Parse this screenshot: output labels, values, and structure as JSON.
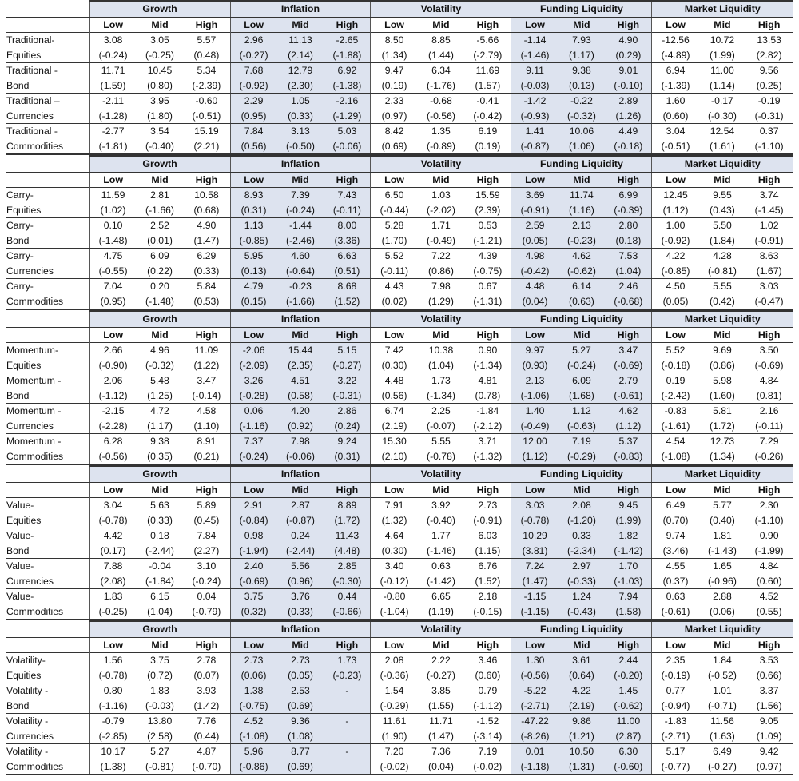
{
  "factor_groups": [
    "Growth",
    "Inflation",
    "Volatility",
    "Funding Liquidity",
    "Market Liquidity"
  ],
  "regimes": [
    "Low",
    "Mid",
    "High"
  ],
  "blocks": [
    {
      "rows": [
        {
          "label": [
            "Traditional-",
            "Equities"
          ],
          "values": [
            "3.08",
            "3.05",
            "5.57",
            "2.96",
            "11.13",
            "-2.65",
            "8.50",
            "8.85",
            "-5.66",
            "-1.14",
            "7.93",
            "4.90",
            "-12.56",
            "10.72",
            "13.53"
          ],
          "tstats": [
            "(-0.24)",
            "(-0.25)",
            "(0.48)",
            "(-0.27)",
            "(2.14)",
            "(-1.88)",
            "(1.34)",
            "(1.44)",
            "(-2.79)",
            "(-1.46)",
            "(1.17)",
            "(0.29)",
            "(-4.89)",
            "(1.99)",
            "(2.82)"
          ]
        },
        {
          "label": [
            "Traditional -",
            "Bond"
          ],
          "values": [
            "11.71",
            "10.45",
            "5.34",
            "7.68",
            "12.79",
            "6.92",
            "9.47",
            "6.34",
            "11.69",
            "9.11",
            "9.38",
            "9.01",
            "6.94",
            "11.00",
            "9.56"
          ],
          "tstats": [
            "(1.59)",
            "(0.80)",
            "(-2.39)",
            "(-0.92)",
            "(2.30)",
            "(-1.38)",
            "(0.19)",
            "(-1.76)",
            "(1.57)",
            "(-0.03)",
            "(0.13)",
            "(-0.10)",
            "(-1.39)",
            "(1.14)",
            "(0.25)"
          ]
        },
        {
          "label": [
            "Traditional –",
            "Currencies"
          ],
          "values": [
            "-2.11",
            "3.95",
            "-0.60",
            "2.29",
            "1.05",
            "-2.16",
            "2.33",
            "-0.68",
            "-0.41",
            "-1.42",
            "-0.22",
            "2.89",
            "1.60",
            "-0.17",
            "-0.19"
          ],
          "tstats": [
            "(-1.28)",
            "(1.80)",
            "(-0.51)",
            "(0.95)",
            "(0.33)",
            "(-1.29)",
            "(0.97)",
            "(-0.56)",
            "(-0.42)",
            "(-0.93)",
            "(-0.32)",
            "(1.26)",
            "(0.60)",
            "(-0.30)",
            "(-0.31)"
          ]
        },
        {
          "label": [
            "Traditional -",
            "Commodities"
          ],
          "values": [
            "-2.77",
            "3.54",
            "15.19",
            "7.84",
            "3.13",
            "5.03",
            "8.42",
            "1.35",
            "6.19",
            "1.41",
            "10.06",
            "4.49",
            "3.04",
            "12.54",
            "0.37"
          ],
          "tstats": [
            "(-1.81)",
            "(-0.40)",
            "(2.21)",
            "(0.56)",
            "(-0.50)",
            "(-0.06)",
            "(0.69)",
            "(-0.89)",
            "(0.19)",
            "(-0.87)",
            "(1.06)",
            "(-0.18)",
            "(-0.51)",
            "(1.61)",
            "(-1.10)"
          ]
        }
      ]
    },
    {
      "rows": [
        {
          "label": [
            "Carry-",
            "Equities"
          ],
          "values": [
            "11.59",
            "2.81",
            "10.58",
            "8.93",
            "7.39",
            "7.43",
            "6.50",
            "1.03",
            "15.59",
            "3.69",
            "11.74",
            "6.99",
            "12.45",
            "9.55",
            "3.74"
          ],
          "tstats": [
            "(1.02)",
            "(-1.66)",
            "(0.68)",
            "(0.31)",
            "(-0.24)",
            "(-0.11)",
            "(-0.44)",
            "(-2.02)",
            "(2.39)",
            "(-0.91)",
            "(1.16)",
            "(-0.39)",
            "(1.12)",
            "(0.43)",
            "(-1.45)"
          ]
        },
        {
          "label": [
            "Carry-",
            "Bond"
          ],
          "values": [
            "0.10",
            "2.52",
            "4.90",
            "1.13",
            "-1.44",
            "8.00",
            "5.28",
            "1.71",
            "0.53",
            "2.59",
            "2.13",
            "2.80",
            "1.00",
            "5.50",
            "1.02"
          ],
          "tstats": [
            "(-1.48)",
            "(0.01)",
            "(1.47)",
            "(-0.85)",
            "(-2.46)",
            "(3.36)",
            "(1.70)",
            "(-0.49)",
            "(-1.21)",
            "(0.05)",
            "(-0.23)",
            "(0.18)",
            "(-0.92)",
            "(1.84)",
            "(-0.91)"
          ]
        },
        {
          "label": [
            "Carry-",
            "Currencies"
          ],
          "values": [
            "4.75",
            "6.09",
            "6.29",
            "5.95",
            "4.60",
            "6.63",
            "5.52",
            "7.22",
            "4.39",
            "4.98",
            "4.62",
            "7.53",
            "4.22",
            "4.28",
            "8.63"
          ],
          "tstats": [
            "(-0.55)",
            "(0.22)",
            "(0.33)",
            "(0.13)",
            "(-0.64)",
            "(0.51)",
            "(-0.11)",
            "(0.86)",
            "(-0.75)",
            "(-0.42)",
            "(-0.62)",
            "(1.04)",
            "(-0.85)",
            "(-0.81)",
            "(1.67)"
          ]
        },
        {
          "label": [
            "Carry-",
            "Commodities"
          ],
          "values": [
            "7.04",
            "0.20",
            "5.84",
            "4.79",
            "-0.23",
            "8.68",
            "4.43",
            "7.98",
            "0.67",
            "4.48",
            "6.14",
            "2.46",
            "4.50",
            "5.55",
            "3.03"
          ],
          "tstats": [
            "(0.95)",
            "(-1.48)",
            "(0.53)",
            "(0.15)",
            "(-1.66)",
            "(1.52)",
            "(0.02)",
            "(1.29)",
            "(-1.31)",
            "(0.04)",
            "(0.63)",
            "(-0.68)",
            "(0.05)",
            "(0.42)",
            "(-0.47)"
          ]
        }
      ]
    },
    {
      "rows": [
        {
          "label": [
            "Momentum-",
            "Equities"
          ],
          "values": [
            "2.66",
            "4.96",
            "11.09",
            "-2.06",
            "15.44",
            "5.15",
            "7.42",
            "10.38",
            "0.90",
            "9.97",
            "5.27",
            "3.47",
            "5.52",
            "9.69",
            "3.50"
          ],
          "tstats": [
            "(-0.90)",
            "(-0.32)",
            "(1.22)",
            "(-2.09)",
            "(2.35)",
            "(-0.27)",
            "(0.30)",
            "(1.04)",
            "(-1.34)",
            "(0.93)",
            "(-0.24)",
            "(-0.69)",
            "(-0.18)",
            "(0.86)",
            "(-0.69)"
          ]
        },
        {
          "label": [
            "Momentum -",
            "Bond"
          ],
          "values": [
            "2.06",
            "5.48",
            "3.47",
            "3.26",
            "4.51",
            "3.22",
            "4.48",
            "1.73",
            "4.81",
            "2.13",
            "6.09",
            "2.79",
            "0.19",
            "5.98",
            "4.84"
          ],
          "tstats": [
            "(-1.12)",
            "(1.25)",
            "(-0.14)",
            "(-0.28)",
            "(0.58)",
            "(-0.31)",
            "(0.56)",
            "(-1.34)",
            "(0.78)",
            "(-1.06)",
            "(1.68)",
            "(-0.61)",
            "(-2.42)",
            "(1.60)",
            "(0.81)"
          ]
        },
        {
          "label": [
            "Momentum -",
            "Currencies"
          ],
          "values": [
            "-2.15",
            "4.72",
            "4.58",
            "0.06",
            "4.20",
            "2.86",
            "6.74",
            "2.25",
            "-1.84",
            "1.40",
            "1.12",
            "4.62",
            "-0.83",
            "5.81",
            "2.16"
          ],
          "tstats": [
            "(-2.28)",
            "(1.17)",
            "(1.10)",
            "(-1.16)",
            "(0.92)",
            "(0.24)",
            "(2.19)",
            "(-0.07)",
            "(-2.12)",
            "(-0.49)",
            "(-0.63)",
            "(1.12)",
            "(-1.61)",
            "(1.72)",
            "(-0.11)"
          ]
        },
        {
          "label": [
            "Momentum -",
            "Commodities"
          ],
          "values": [
            "6.28",
            "9.38",
            "8.91",
            "7.37",
            "7.98",
            "9.24",
            "15.30",
            "5.55",
            "3.71",
            "12.00",
            "7.19",
            "5.37",
            "4.54",
            "12.73",
            "7.29"
          ],
          "tstats": [
            "(-0.56)",
            "(0.35)",
            "(0.21)",
            "(-0.24)",
            "(-0.06)",
            "(0.31)",
            "(2.10)",
            "(-0.78)",
            "(-1.32)",
            "(1.12)",
            "(-0.29)",
            "(-0.83)",
            "(-1.08)",
            "(1.34)",
            "(-0.26)"
          ]
        }
      ]
    },
    {
      "rows": [
        {
          "label": [
            "Value-",
            "Equities"
          ],
          "values": [
            "3.04",
            "5.63",
            "5.89",
            "2.91",
            "2.87",
            "8.89",
            "7.91",
            "3.92",
            "2.73",
            "3.03",
            "2.08",
            "9.45",
            "6.49",
            "5.77",
            "2.30"
          ],
          "tstats": [
            "(-0.78)",
            "(0.33)",
            "(0.45)",
            "(-0.84)",
            "(-0.87)",
            "(1.72)",
            "(1.32)",
            "(-0.40)",
            "(-0.91)",
            "(-0.78)",
            "(-1.20)",
            "(1.99)",
            "(0.70)",
            "(0.40)",
            "(-1.10)"
          ]
        },
        {
          "label": [
            "Value-",
            "Bond"
          ],
          "values": [
            "4.42",
            "0.18",
            "7.84",
            "0.98",
            "0.24",
            "11.43",
            "4.64",
            "1.77",
            "6.03",
            "10.29",
            "0.33",
            "1.82",
            "9.74",
            "1.81",
            "0.90"
          ],
          "tstats": [
            "(0.17)",
            "(-2.44)",
            "(2.27)",
            "(-1.94)",
            "(-2.44)",
            "(4.48)",
            "(0.30)",
            "(-1.46)",
            "(1.15)",
            "(3.81)",
            "(-2.34)",
            "(-1.42)",
            "(3.46)",
            "(-1.43)",
            "(-1.99)"
          ]
        },
        {
          "label": [
            "Value-",
            "Currencies"
          ],
          "values": [
            "7.88",
            "-0.04",
            "3.10",
            "2.40",
            "5.56",
            "2.85",
            "3.40",
            "0.63",
            "6.76",
            "7.24",
            "2.97",
            "1.70",
            "4.55",
            "1.65",
            "4.84"
          ],
          "tstats": [
            "(2.08)",
            "(-1.84)",
            "(-0.24)",
            "(-0.69)",
            "(0.96)",
            "(-0.30)",
            "(-0.12)",
            "(-1.42)",
            "(1.52)",
            "(1.47)",
            "(-0.33)",
            "(-1.03)",
            "(0.37)",
            "(-0.96)",
            "(0.60)"
          ]
        },
        {
          "label": [
            "Value-",
            "Commodities"
          ],
          "values": [
            "1.83",
            "6.15",
            "0.04",
            "3.75",
            "3.76",
            "0.44",
            "-0.80",
            "6.65",
            "2.18",
            "-1.15",
            "1.24",
            "7.94",
            "0.63",
            "2.88",
            "4.52"
          ],
          "tstats": [
            "(-0.25)",
            "(1.04)",
            "(-0.79)",
            "(0.32)",
            "(0.33)",
            "(-0.66)",
            "(-1.04)",
            "(1.19)",
            "(-0.15)",
            "(-1.15)",
            "(-0.43)",
            "(1.58)",
            "(-0.61)",
            "(0.06)",
            "(0.55)"
          ]
        }
      ]
    },
    {
      "rows": [
        {
          "label": [
            "Volatility-",
            "Equities"
          ],
          "values": [
            "1.56",
            "3.75",
            "2.78",
            "2.73",
            "2.73",
            "1.73",
            "2.08",
            "2.22",
            "3.46",
            "1.30",
            "3.61",
            "2.44",
            "2.35",
            "1.84",
            "3.53"
          ],
          "tstats": [
            "(-0.78)",
            "(0.72)",
            "(0.07)",
            "(0.06)",
            "(0.05)",
            "(-0.23)",
            "(-0.36)",
            "(-0.27)",
            "(0.60)",
            "(-0.56)",
            "(0.64)",
            "(-0.20)",
            "(-0.19)",
            "(-0.52)",
            "(0.66)"
          ]
        },
        {
          "label": [
            "Volatility -",
            "Bond"
          ],
          "values": [
            "0.80",
            "1.83",
            "3.93",
            "1.38",
            "2.53",
            "-",
            "1.54",
            "3.85",
            "0.79",
            "-5.22",
            "4.22",
            "1.45",
            "0.77",
            "1.01",
            "3.37"
          ],
          "tstats": [
            "(-1.16)",
            "(-0.03)",
            "(1.42)",
            "(-0.75)",
            "(0.69)",
            "",
            "(-0.29)",
            "(1.55)",
            "(-1.12)",
            "(-2.71)",
            "(2.19)",
            "(-0.62)",
            "(-0.94)",
            "(-0.71)",
            "(1.56)"
          ]
        },
        {
          "label": [
            "Volatility -",
            "Currencies"
          ],
          "values": [
            "-0.79",
            "13.80",
            "7.76",
            "4.52",
            "9.36",
            "-",
            "11.61",
            "11.71",
            "-1.52",
            "-47.22",
            "9.86",
            "11.00",
            "-1.83",
            "11.56",
            "9.05"
          ],
          "tstats": [
            "(-2.85)",
            "(2.58)",
            "(0.44)",
            "(-1.08)",
            "(1.08)",
            "",
            "(1.90)",
            "(1.47)",
            "(-3.14)",
            "(-8.26)",
            "(1.21)",
            "(2.87)",
            "(-2.71)",
            "(1.63)",
            "(1.09)"
          ]
        },
        {
          "label": [
            "Volatility -",
            "Commodities"
          ],
          "values": [
            "10.17",
            "5.27",
            "4.87",
            "5.96",
            "8.77",
            "-",
            "7.20",
            "7.36",
            "7.19",
            "0.01",
            "10.50",
            "6.30",
            "5.17",
            "6.49",
            "9.42"
          ],
          "tstats": [
            "(1.38)",
            "(-0.81)",
            "(-0.70)",
            "(-0.86)",
            "(0.69)",
            "",
            "(-0.02)",
            "(0.04)",
            "(-0.02)",
            "(-1.18)",
            "(1.31)",
            "(-0.60)",
            "(-0.77)",
            "(-0.27)",
            "(0.97)"
          ]
        }
      ]
    }
  ]
}
